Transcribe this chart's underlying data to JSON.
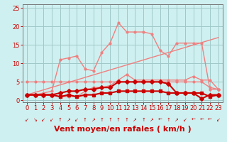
{
  "xlabel": "Vent moyen/en rafales ( km/h )",
  "xlim": [
    -0.5,
    23.5
  ],
  "ylim": [
    -0.5,
    26
  ],
  "yticks": [
    0,
    5,
    10,
    15,
    20,
    25
  ],
  "xticks": [
    0,
    1,
    2,
    3,
    4,
    5,
    6,
    7,
    8,
    9,
    10,
    11,
    12,
    13,
    14,
    15,
    16,
    17,
    18,
    19,
    20,
    21,
    22,
    23
  ],
  "bg_color": "#cff0f0",
  "grid_color": "#a0c8c8",
  "series": [
    {
      "comment": "diagonal line (pink, no markers)",
      "x": [
        0,
        23
      ],
      "y": [
        1.5,
        17.0
      ],
      "color": "#f08080",
      "lw": 1.0,
      "marker": null,
      "ms": 0
    },
    {
      "comment": "flat ~5 line then drops (light pink, small markers)",
      "x": [
        0,
        1,
        2,
        3,
        4,
        5,
        6,
        7,
        8,
        9,
        10,
        11,
        12,
        13,
        14,
        15,
        16,
        17,
        18,
        19,
        20,
        21,
        22,
        23
      ],
      "y": [
        5.0,
        5.0,
        5.0,
        5.0,
        5.0,
        5.0,
        5.0,
        5.0,
        5.0,
        5.0,
        5.0,
        5.0,
        5.0,
        5.0,
        5.0,
        5.0,
        5.0,
        5.0,
        5.0,
        5.0,
        5.0,
        5.0,
        3.5,
        3.0
      ],
      "color": "#f08080",
      "lw": 1.0,
      "marker": "o",
      "ms": 2.0
    },
    {
      "comment": "rises to ~13/12 at 5-6, dips, rises to 13 at 9, peak 15.5 at 10, 21 at 11, 18 at 12-14, drops 13 at 16, 12 at 17, rises 15.5 at 18-19, drops 3 at 22-23 (light pink)",
      "x": [
        0,
        1,
        2,
        3,
        4,
        5,
        6,
        7,
        8,
        9,
        10,
        11,
        12,
        13,
        14,
        15,
        16,
        17,
        18,
        19,
        20,
        21,
        22,
        23
      ],
      "y": [
        1.5,
        1.5,
        2.0,
        2.5,
        11.0,
        11.5,
        12.0,
        8.5,
        8.0,
        13.0,
        15.5,
        21.0,
        18.5,
        18.5,
        18.5,
        18.0,
        13.5,
        12.0,
        15.5,
        15.5,
        15.5,
        15.5,
        3.0,
        3.0
      ],
      "color": "#f08080",
      "lw": 1.0,
      "marker": "o",
      "ms": 2.0
    },
    {
      "comment": "rises gradually from 1.5 to ~6 at 11-12, stays ~5, drops end (light pink)",
      "x": [
        0,
        1,
        2,
        3,
        4,
        5,
        6,
        7,
        8,
        9,
        10,
        11,
        12,
        13,
        14,
        15,
        16,
        17,
        18,
        19,
        20,
        21,
        22,
        23
      ],
      "y": [
        1.5,
        1.5,
        1.5,
        1.5,
        1.0,
        1.0,
        1.0,
        2.5,
        3.5,
        3.5,
        4.0,
        5.5,
        7.0,
        5.5,
        5.5,
        5.5,
        5.5,
        5.5,
        5.5,
        5.5,
        6.5,
        5.5,
        5.5,
        3.0
      ],
      "color": "#f08080",
      "lw": 1.0,
      "marker": "o",
      "ms": 2.0
    },
    {
      "comment": "dark red - average wind, nearly flat low ~1-2",
      "x": [
        0,
        1,
        2,
        3,
        4,
        5,
        6,
        7,
        8,
        9,
        10,
        11,
        12,
        13,
        14,
        15,
        16,
        17,
        18,
        19,
        20,
        21,
        22,
        23
      ],
      "y": [
        1.5,
        1.5,
        1.5,
        1.5,
        1.0,
        1.5,
        1.0,
        1.5,
        1.5,
        2.0,
        2.0,
        2.5,
        2.5,
        2.5,
        2.5,
        2.5,
        2.5,
        2.0,
        2.0,
        2.0,
        2.0,
        2.0,
        1.0,
        1.5
      ],
      "color": "#cc0000",
      "lw": 1.5,
      "marker": "s",
      "ms": 3.0
    },
    {
      "comment": "dark red - gusts, rises from ~1.5 to ~5 at 11-15, stays, drops 0.5 at 21",
      "x": [
        0,
        1,
        2,
        3,
        4,
        5,
        6,
        7,
        8,
        9,
        10,
        11,
        12,
        13,
        14,
        15,
        16,
        17,
        18,
        19,
        20,
        21,
        22,
        23
      ],
      "y": [
        1.5,
        1.5,
        1.5,
        1.5,
        2.0,
        2.5,
        2.5,
        3.0,
        3.0,
        3.5,
        3.5,
        5.0,
        5.0,
        5.0,
        5.0,
        5.0,
        5.0,
        4.5,
        2.0,
        2.0,
        2.0,
        0.5,
        1.5,
        1.5
      ],
      "color": "#cc0000",
      "lw": 1.5,
      "marker": "D",
      "ms": 3.0
    }
  ],
  "arrows": [
    "↙",
    "↘",
    "↙",
    "↙",
    "↑",
    "↗",
    "↙",
    "↑",
    "↗",
    "↑",
    "↑",
    "↑",
    "↑",
    "↗",
    "↑",
    "↗",
    "←",
    "↑",
    "↗",
    "↙",
    "←",
    "←",
    "←",
    "↙"
  ],
  "font_size_xlabel": 8,
  "font_size_ticks": 6,
  "font_size_arrows": 5
}
